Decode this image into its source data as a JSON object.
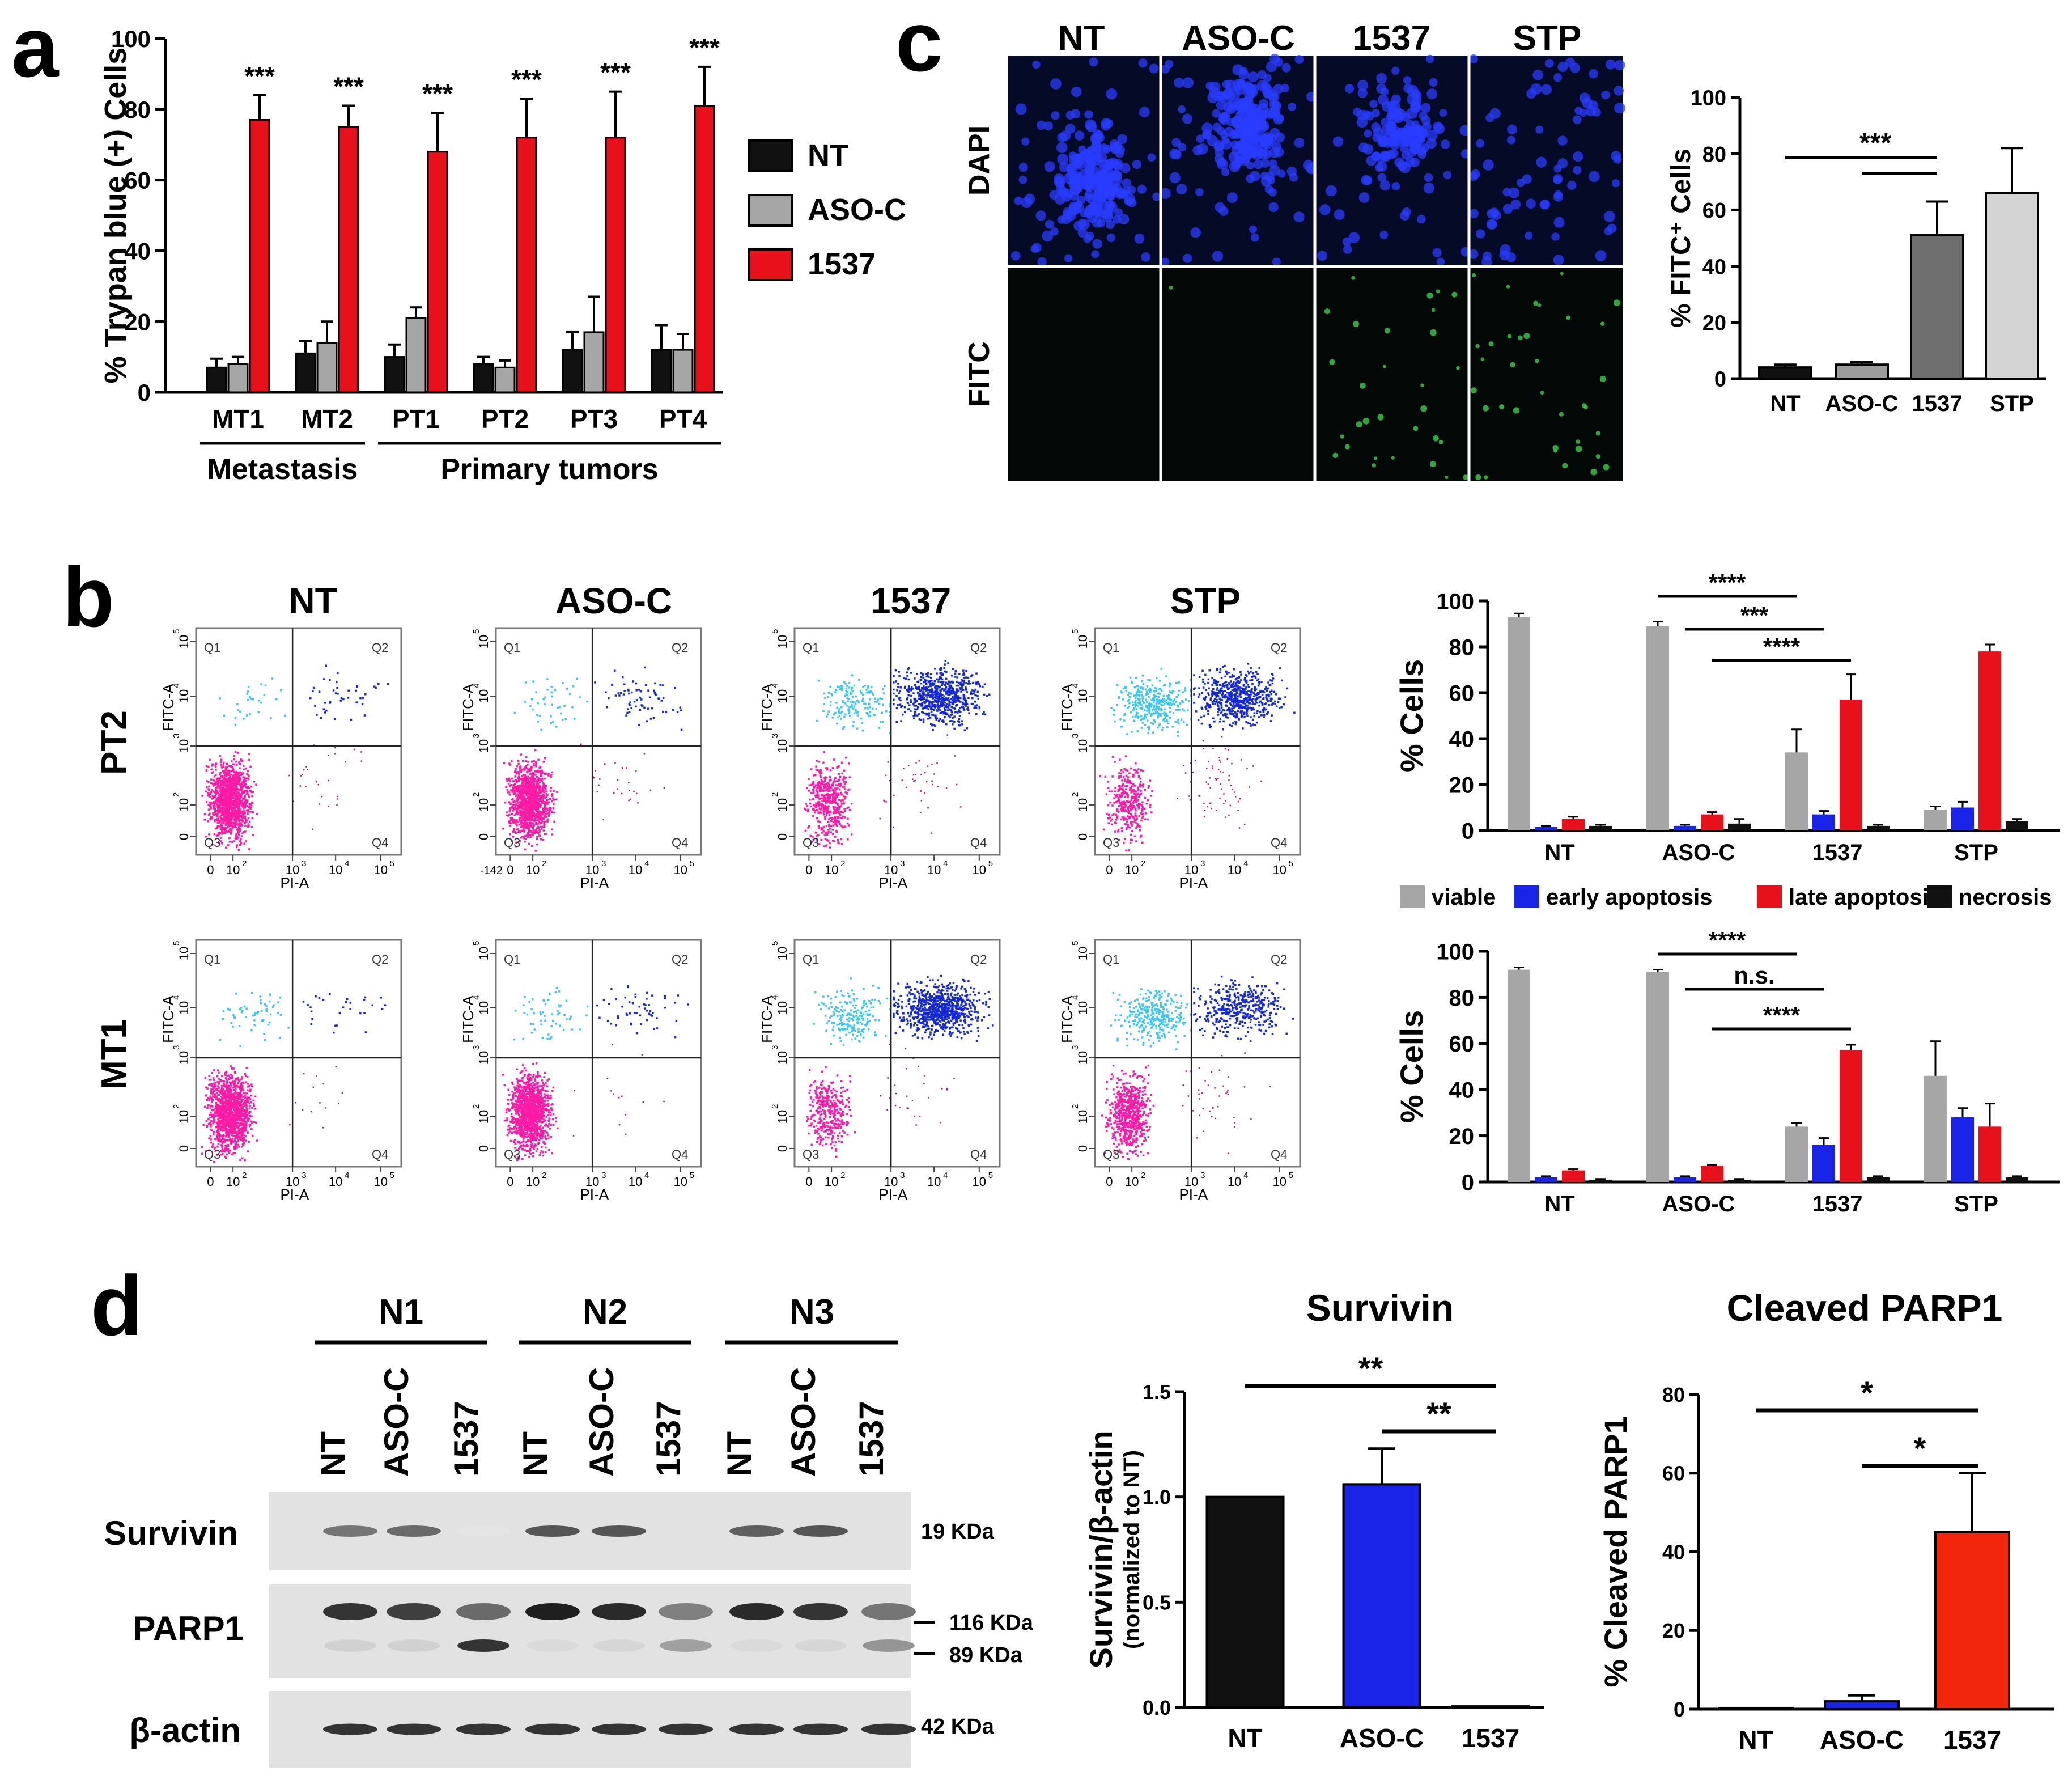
{
  "panels": {
    "a": {
      "letter": "a",
      "chart_data": {
        "type": "bar",
        "ylabel": "% Trypan blue (+) Cells",
        "ylim": [
          0,
          100
        ],
        "yticks": [
          "0",
          "20",
          "40",
          "60",
          "80",
          "100"
        ],
        "categories": [
          "MT1",
          "MT2",
          "PT1",
          "PT2",
          "PT3",
          "PT4"
        ],
        "groups": [
          {
            "label": "Metastasis",
            "from": 0,
            "to": 1
          },
          {
            "label": "Primary tumors",
            "from": 2,
            "to": 5
          }
        ],
        "series": [
          {
            "name": "NT",
            "color": "#111111",
            "values": [
              7,
              11,
              10,
              8,
              12,
              12
            ],
            "err": [
              2.5,
              3.5,
              3.5,
              2,
              5,
              7
            ]
          },
          {
            "name": "ASO-C",
            "color": "#a6a6a6",
            "values": [
              8,
              14,
              21,
              7,
              17,
              12
            ],
            "err": [
              2,
              6,
              3,
              2,
              10,
              4.5
            ]
          },
          {
            "name": "1537",
            "color": "#e8101a",
            "values": [
              77,
              75,
              68,
              72,
              72,
              81
            ],
            "err": [
              7,
              6,
              11,
              11,
              13,
              11
            ]
          }
        ],
        "significance": [
          "***",
          "***",
          "***",
          "***",
          "***",
          "***"
        ]
      }
    },
    "b": {
      "letter": "b",
      "flow": {
        "columns": [
          "NT",
          "ASO-C",
          "1537",
          "STP"
        ],
        "rows": [
          "PT2",
          "MT1"
        ],
        "xaxis": "PI-A",
        "yaxis": "FITC-A",
        "quadrants": [
          "Q1",
          "Q2",
          "Q3",
          "Q4"
        ],
        "xticks": [
          "0",
          "10",
          "10",
          "10",
          "10"
        ],
        "xtick_exp": [
          "",
          "2",
          "3",
          "4",
          "5"
        ],
        "yticks": [
          "0",
          "10",
          "10",
          "10",
          "10"
        ],
        "ytick_exp": [
          "",
          "2",
          "3",
          "4",
          "5"
        ],
        "neg_label": "-142",
        "pop_colors": {
          "viable": "#ff1ba6",
          "early": "#3cc6f0",
          "late": "#1428d8",
          "necrosis": "#a0207c"
        },
        "density": {
          "PT2": [
            {
              "viable": 0.93,
              "early": 0.02,
              "late": 0.03,
              "necrosis": 0.02
            },
            {
              "viable": 0.9,
              "early": 0.03,
              "late": 0.05,
              "necrosis": 0.02
            },
            {
              "viable": 0.35,
              "early": 0.12,
              "late": 0.5,
              "necrosis": 0.03
            },
            {
              "viable": 0.25,
              "early": 0.25,
              "late": 0.45,
              "necrosis": 0.05
            }
          ],
          "MT1": [
            {
              "viable": 0.93,
              "early": 0.04,
              "late": 0.02,
              "necrosis": 0.01
            },
            {
              "viable": 0.91,
              "early": 0.04,
              "late": 0.04,
              "necrosis": 0.01
            },
            {
              "viable": 0.25,
              "early": 0.15,
              "late": 0.58,
              "necrosis": 0.02
            },
            {
              "viable": 0.45,
              "early": 0.22,
              "late": 0.3,
              "necrosis": 0.03
            }
          ]
        }
      },
      "legend": [
        {
          "name": "viable",
          "color": "#a6a6a6"
        },
        {
          "name": "early apoptosis",
          "color": "#1a23e8"
        },
        {
          "name": "late apoptosis",
          "color": "#e8101a"
        },
        {
          "name": "necrosis",
          "color": "#111111"
        }
      ],
      "chart_data": [
        {
          "type": "bar",
          "row": "PT2",
          "ylabel": "% Cells",
          "ylim": [
            0,
            100
          ],
          "yticks": [
            "0",
            "20",
            "40",
            "60",
            "80",
            "100"
          ],
          "categories": [
            "NT",
            "ASO-C",
            "1537",
            "STP"
          ],
          "series": [
            {
              "name": "viable",
              "values": [
                93,
                89,
                34,
                9
              ],
              "err": [
                1.5,
                2,
                10,
                1.5
              ]
            },
            {
              "name": "early apoptosis",
              "values": [
                1.5,
                2,
                7,
                10
              ],
              "err": [
                0.5,
                0.5,
                1.5,
                2.5
              ]
            },
            {
              "name": "late apoptosis",
              "values": [
                5,
                7,
                57,
                78
              ],
              "err": [
                1,
                1,
                11,
                3
              ]
            },
            {
              "name": "necrosis",
              "values": [
                2,
                3,
                2,
                4
              ],
              "err": [
                0.5,
                2,
                0.5,
                1
              ]
            }
          ],
          "comparisons": [
            {
              "label": "****",
              "from": "ASO-C viable",
              "to": "1537 viable"
            },
            {
              "label": "***",
              "from": "ASO-C early apoptosis",
              "to": "1537 early apoptosis"
            },
            {
              "label": "****",
              "from": "ASO-C late apoptosis",
              "to": "1537 late apoptosis"
            }
          ]
        },
        {
          "type": "bar",
          "row": "MT1",
          "ylabel": "% Cells",
          "ylim": [
            0,
            100
          ],
          "yticks": [
            "0",
            "20",
            "40",
            "60",
            "80",
            "100"
          ],
          "categories": [
            "NT",
            "ASO-C",
            "1537",
            "STP"
          ],
          "series": [
            {
              "name": "viable",
              "values": [
                92,
                91,
                24,
                46
              ],
              "err": [
                1,
                1,
                1.5,
                15
              ]
            },
            {
              "name": "early apoptosis",
              "values": [
                2,
                2,
                16,
                28
              ],
              "err": [
                0.5,
                0.5,
                3,
                4
              ]
            },
            {
              "name": "late apoptosis",
              "values": [
                5,
                7,
                57,
                24
              ],
              "err": [
                0.5,
                0.5,
                2.5,
                10
              ]
            },
            {
              "name": "necrosis",
              "values": [
                1,
                1,
                2,
                2
              ],
              "err": [
                0.3,
                0.3,
                0.5,
                0.5
              ]
            }
          ],
          "comparisons": [
            {
              "label": "****",
              "from": "ASO-C viable",
              "to": "1537 viable"
            },
            {
              "label": "n.s.",
              "from": "ASO-C early apoptosis",
              "to": "1537 early apoptosis"
            },
            {
              "label": "****",
              "from": "ASO-C late apoptosis",
              "to": "1537 late apoptosis"
            }
          ]
        }
      ]
    },
    "c": {
      "letter": "c",
      "micro": {
        "columns": [
          "NT",
          "ASO-C",
          "1537",
          "STP"
        ],
        "rows": [
          "DAPI",
          "FITC"
        ],
        "dapi_density": [
          0.95,
          1.0,
          0.6,
          0.3
        ],
        "fitc_density": [
          0.0,
          0.02,
          0.5,
          0.6
        ]
      },
      "chart_data": {
        "type": "bar",
        "ylabel": "% FITC⁺ Cells",
        "ylim": [
          0,
          100
        ],
        "yticks": [
          "0",
          "20",
          "40",
          "60",
          "80",
          "100"
        ],
        "categories": [
          "NT",
          "ASO-C",
          "1537",
          "STP"
        ],
        "values": [
          4,
          5,
          51,
          66
        ],
        "err": [
          1,
          1,
          12,
          16
        ],
        "colors": [
          "#111111",
          "#9c9c9c",
          "#6e6e6e",
          "#d4d4d4"
        ],
        "comparisons": [
          {
            "label": "***",
            "from": "NT",
            "to": "1537"
          },
          {
            "label": "",
            "from": "ASO-C",
            "to": "1537"
          }
        ]
      }
    },
    "d": {
      "letter": "d",
      "blot": {
        "groups": [
          "N1",
          "N2",
          "N3"
        ],
        "lanes": [
          "NT",
          "ASO-C",
          "1537",
          "NT",
          "ASO-C",
          "1537",
          "NT",
          "ASO-C",
          "1537"
        ],
        "rows": [
          {
            "label": "Survivin",
            "sizes": [
              "19 KDa"
            ],
            "intensity": [
              0.55,
              0.6,
              0.03,
              0.7,
              0.7,
              0.0,
              0.65,
              0.7,
              0.0
            ]
          },
          {
            "label": "PARP1",
            "sizes": [
              "116 KDa",
              "89 KDa"
            ],
            "intensity": [
              0.85,
              0.8,
              0.6,
              0.95,
              0.9,
              0.5,
              0.9,
              0.85,
              0.55
            ],
            "cleaved": [
              0.12,
              0.12,
              0.85,
              0.08,
              0.1,
              0.35,
              0.08,
              0.1,
              0.4
            ]
          },
          {
            "label": "β-actin",
            "sizes": [
              "42 KDa"
            ],
            "intensity": [
              0.85,
              0.85,
              0.85,
              0.85,
              0.85,
              0.85,
              0.85,
              0.85,
              0.85
            ]
          }
        ]
      },
      "survivin_chart": {
        "type": "bar",
        "title": "Survivin",
        "ylabel": "Survivin/β-actin",
        "ylabel_sub": "(normalized to NT)",
        "ylim": [
          0,
          1.5
        ],
        "yticks": [
          "0.0",
          "0.5",
          "1.0",
          "1.5"
        ],
        "categories": [
          "NT",
          "ASO-C",
          "1537"
        ],
        "values": [
          1.0,
          1.06,
          0.005
        ],
        "err": [
          0,
          0.17,
          0
        ],
        "colors": [
          "#111111",
          "#1a23e8",
          "#111111"
        ],
        "comparisons": [
          {
            "label": "**",
            "from": "NT",
            "to": "1537"
          },
          {
            "label": "**",
            "from": "ASO-C",
            "to": "1537"
          }
        ]
      },
      "parp_chart": {
        "type": "bar",
        "title": "Cleaved PARP1",
        "ylabel": "% Cleaved PARP1",
        "ylim": [
          0,
          80
        ],
        "yticks": [
          "0",
          "20",
          "40",
          "60",
          "80"
        ],
        "categories": [
          "NT",
          "ASO-C",
          "1537"
        ],
        "values": [
          0.3,
          2,
          45
        ],
        "err": [
          0,
          1.5,
          15
        ],
        "colors": [
          "#111111",
          "#1a23e8",
          "#f2260d"
        ],
        "comparisons": [
          {
            "label": "*",
            "from": "NT",
            "to": "1537"
          },
          {
            "label": "*",
            "from": "ASO-C",
            "to": "1537"
          }
        ]
      }
    }
  }
}
